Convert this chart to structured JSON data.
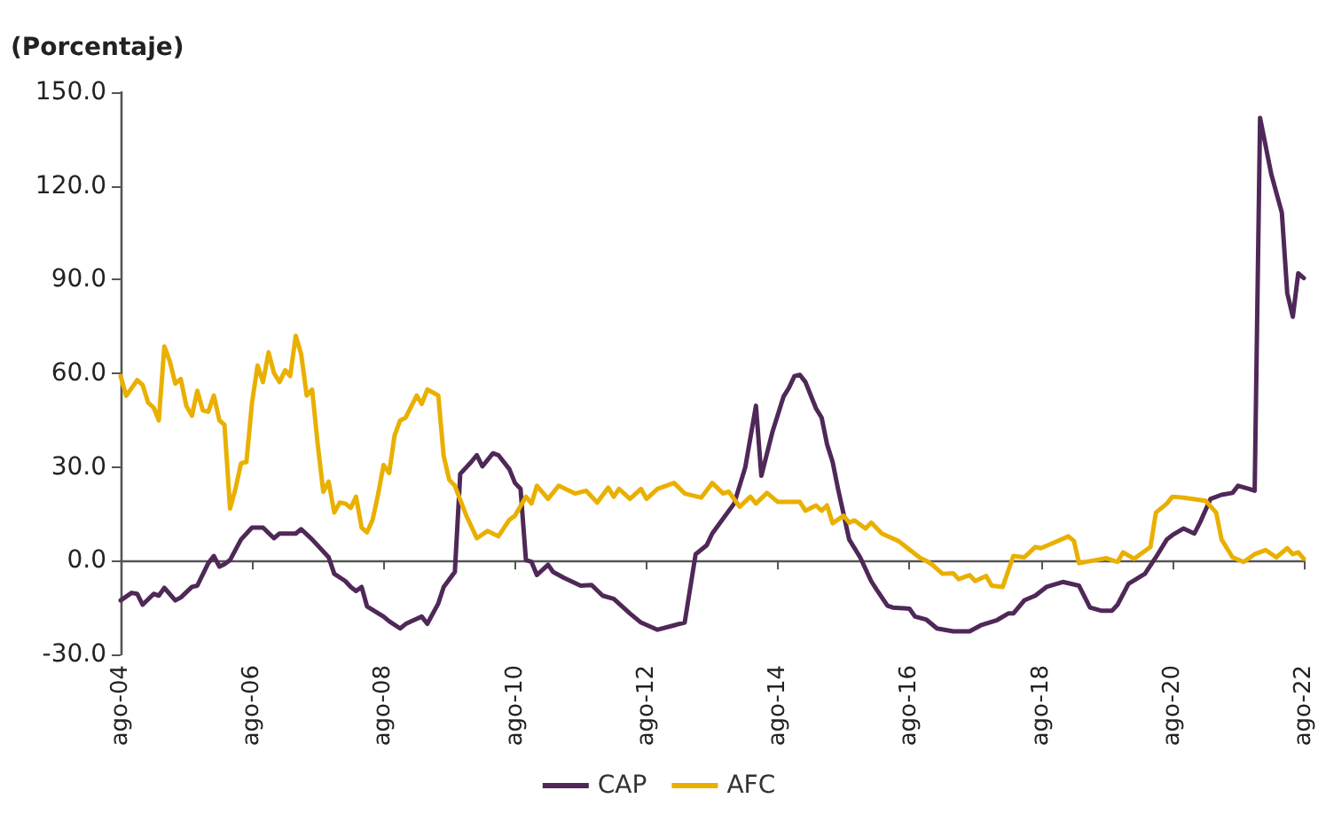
{
  "chart_data": {
    "type": "line",
    "ylabel": "(Porcentaje)",
    "ylim": [
      -30,
      150
    ],
    "yticks": [
      {
        "value": -30,
        "label": "-30.0"
      },
      {
        "value": 0,
        "label": "0.0"
      },
      {
        "value": 30,
        "label": "30.0"
      },
      {
        "value": 60,
        "label": "60.0"
      },
      {
        "value": 90,
        "label": "90.0"
      },
      {
        "value": 120,
        "label": "120.0"
      },
      {
        "value": 150,
        "label": "150.0"
      }
    ],
    "xlim": [
      "2004-08",
      "2022-08"
    ],
    "xticks": [
      {
        "value": "2004-08",
        "label": "ago-04"
      },
      {
        "value": "2006-08",
        "label": "ago-06"
      },
      {
        "value": "2008-08",
        "label": "ago-08"
      },
      {
        "value": "2010-08",
        "label": "ago-10"
      },
      {
        "value": "2012-08",
        "label": "ago-12"
      },
      {
        "value": "2014-08",
        "label": "ago-14"
      },
      {
        "value": "2016-08",
        "label": "ago-16"
      },
      {
        "value": "2018-08",
        "label": "ago-18"
      },
      {
        "value": "2020-08",
        "label": "ago-20"
      },
      {
        "value": "2022-08",
        "label": "ago-22"
      }
    ],
    "legend": "bottom",
    "marker": "none",
    "line_style": "solid",
    "series": [
      {
        "name": "CAP",
        "color": "#4f2858",
        "x": [
          "2004-08",
          "2004-10",
          "2004-11",
          "2004-12",
          "2005-02",
          "2005-03",
          "2005-04",
          "2005-06",
          "2005-07",
          "2005-09",
          "2005-10",
          "2005-12",
          "2006-01",
          "2006-02",
          "2006-03",
          "2006-04",
          "2006-06",
          "2006-08",
          "2006-10",
          "2006-12",
          "2007-01",
          "2007-04",
          "2007-05",
          "2007-07",
          "2007-10",
          "2007-11",
          "2008-01",
          "2008-02",
          "2008-03",
          "2008-04",
          "2008-05",
          "2008-08",
          "2008-09",
          "2008-11",
          "2008-12",
          "2009-01",
          "2009-03",
          "2009-04",
          "2009-06",
          "2009-07",
          "2009-09",
          "2009-10",
          "2009-12",
          "2010-01",
          "2010-02",
          "2010-04",
          "2010-05",
          "2010-07",
          "2010-08",
          "2010-09",
          "2010-10",
          "2010-11",
          "2010-12",
          "2011-02",
          "2011-03",
          "2011-05",
          "2011-08",
          "2011-10",
          "2011-12",
          "2012-02",
          "2012-05",
          "2012-07",
          "2012-10",
          "2013-01",
          "2013-03",
          "2013-05",
          "2013-07",
          "2013-08",
          "2013-10",
          "2013-12",
          "2014-02",
          "2014-04",
          "2014-05",
          "2014-07",
          "2014-09",
          "2014-10",
          "2014-11",
          "2014-12",
          "2015-01",
          "2015-03",
          "2015-04",
          "2015-05",
          "2015-06",
          "2015-07",
          "2015-09",
          "2015-11",
          "2016-01",
          "2016-02",
          "2016-04",
          "2016-05",
          "2016-08",
          "2016-09",
          "2016-11",
          "2017-01",
          "2017-04",
          "2017-07",
          "2017-09",
          "2017-12",
          "2018-02",
          "2018-03",
          "2018-05",
          "2018-07",
          "2018-09",
          "2018-12",
          "2019-03",
          "2019-05",
          "2019-07",
          "2019-09",
          "2019-10",
          "2019-12",
          "2020-03",
          "2020-05",
          "2020-07",
          "2020-08",
          "2020-10",
          "2020-12",
          "2021-01",
          "2021-03",
          "2021-05",
          "2021-07",
          "2021-08",
          "2021-10",
          "2021-11",
          "2021-12",
          "2022-02",
          "2022-04",
          "2022-05",
          "2022-06",
          "2022-07",
          "2022-08"
        ],
        "values": [
          -12.7,
          -10.3,
          -10.6,
          -14.1,
          -10.6,
          -11.2,
          -8.7,
          -12.7,
          -11.8,
          -8.4,
          -8,
          -0.8,
          1.5,
          -1.9,
          -1.1,
          0.2,
          6.8,
          10.6,
          10.6,
          7.2,
          8.7,
          8.7,
          10.1,
          6.8,
          1.1,
          -4.2,
          -6.5,
          -8.4,
          -9.7,
          -8.4,
          -14.6,
          -17.9,
          -19.4,
          -21.7,
          -20.3,
          -19.4,
          -17.9,
          -20.2,
          -13.7,
          -8.4,
          -3.6,
          27.8,
          31.6,
          33.8,
          30.2,
          34.4,
          33.8,
          29.3,
          24.9,
          23,
          0.2,
          -0.4,
          -4.6,
          -1.3,
          -3.6,
          -5.5,
          -8,
          -7.8,
          -11.2,
          -12.2,
          -16.9,
          -19.8,
          -22.1,
          -20.7,
          -19.8,
          2.1,
          4.9,
          8.7,
          13.5,
          18.3,
          30,
          49.6,
          27.2,
          41.1,
          52.5,
          55.3,
          59.1,
          59.5,
          57.2,
          48.7,
          45.8,
          37.3,
          31.6,
          23,
          6.8,
          1.1,
          -6.5,
          -9.3,
          -14.4,
          -15,
          -15.4,
          -17.9,
          -18.8,
          -21.7,
          -22.6,
          -22.6,
          -20.7,
          -19,
          -16.9,
          -16.9,
          -12.7,
          -11.2,
          -8.4,
          -6.8,
          -8,
          -15,
          -16,
          -16,
          -14.1,
          -7.4,
          -4.2,
          1.1,
          6.8,
          8.2,
          10.3,
          8.7,
          12.2,
          19.8,
          21.1,
          21.7,
          24,
          23,
          22.4,
          141.8,
          123.8,
          111.4,
          85.7,
          78.1,
          92,
          90.5
        ]
      },
      {
        "name": "AFC",
        "color": "#e9b000",
        "x": [
          "2004-08",
          "2004-09",
          "2004-11",
          "2004-12",
          "2005-01",
          "2005-02",
          "2005-03",
          "2005-04",
          "2005-05",
          "2005-06",
          "2005-07",
          "2005-08",
          "2005-09",
          "2005-10",
          "2005-11",
          "2005-12",
          "2006-01",
          "2006-02",
          "2006-03",
          "2006-04",
          "2006-05",
          "2006-06",
          "2006-07",
          "2006-08",
          "2006-09",
          "2006-10",
          "2006-11",
          "2006-12",
          "2007-01",
          "2007-02",
          "2007-03",
          "2007-04",
          "2007-05",
          "2007-06",
          "2007-07",
          "2007-08",
          "2007-09",
          "2007-10",
          "2007-11",
          "2007-12",
          "2008-01",
          "2008-02",
          "2008-03",
          "2008-04",
          "2008-05",
          "2008-06",
          "2008-07",
          "2008-08",
          "2008-09",
          "2008-10",
          "2008-11",
          "2008-12",
          "2009-02",
          "2009-03",
          "2009-04",
          "2009-06",
          "2009-07",
          "2009-08",
          "2009-09",
          "2009-11",
          "2010-01",
          "2010-03",
          "2010-05",
          "2010-07",
          "2010-08",
          "2010-10",
          "2010-11",
          "2010-12",
          "2011-02",
          "2011-04",
          "2011-07",
          "2011-09",
          "2011-11",
          "2012-01",
          "2012-02",
          "2012-03",
          "2012-05",
          "2012-07",
          "2012-08",
          "2012-10",
          "2013-01",
          "2013-03",
          "2013-06",
          "2013-08",
          "2013-10",
          "2013-11",
          "2014-01",
          "2014-03",
          "2014-04",
          "2014-06",
          "2014-08",
          "2014-12",
          "2015-01",
          "2015-03",
          "2015-04",
          "2015-05",
          "2015-06",
          "2015-08",
          "2015-09",
          "2015-10",
          "2015-12",
          "2016-01",
          "2016-03",
          "2016-06",
          "2016-10",
          "2016-11",
          "2016-12",
          "2017-02",
          "2017-04",
          "2017-05",
          "2017-07",
          "2017-08",
          "2017-10",
          "2017-11",
          "2018-01",
          "2018-03",
          "2018-05",
          "2018-07",
          "2018-08",
          "2018-10",
          "2019-01",
          "2019-02",
          "2019-03",
          "2019-06",
          "2019-08",
          "2019-10",
          "2019-11",
          "2020-01",
          "2020-04",
          "2020-05",
          "2020-07",
          "2020-08",
          "2020-10",
          "2021-02",
          "2021-04",
          "2021-05",
          "2021-07",
          "2021-09",
          "2021-11",
          "2022-01",
          "2022-03",
          "2022-05",
          "2022-06",
          "2022-07",
          "2022-08"
        ],
        "values": [
          59.1,
          52.8,
          57.8,
          56.3,
          50.6,
          49,
          44.9,
          68.6,
          63.9,
          56.7,
          58.2,
          49.6,
          46.4,
          54.4,
          48.1,
          47.7,
          52.9,
          44.9,
          43.5,
          16.7,
          23,
          31.2,
          31.6,
          50.6,
          62.5,
          57.2,
          66.7,
          60.1,
          57.2,
          61,
          59.1,
          72,
          66.2,
          52.9,
          54.8,
          37.3,
          22.1,
          25.3,
          15.4,
          18.6,
          18.3,
          16.9,
          20.5,
          10.6,
          9.1,
          13.1,
          21.1,
          30.6,
          28.1,
          40.1,
          44.9,
          45.8,
          52.9,
          50.2,
          54.8,
          52.9,
          33.5,
          25.9,
          24,
          14.8,
          7.2,
          9.5,
          7.8,
          13.1,
          14.4,
          20.5,
          18.3,
          24,
          19.8,
          24,
          21.5,
          22.4,
          18.6,
          23.4,
          20.5,
          23,
          19.8,
          23,
          19.8,
          23,
          24.9,
          21.5,
          20.2,
          24.9,
          21.5,
          22.1,
          17.3,
          20.5,
          18.3,
          21.7,
          18.8,
          18.8,
          16,
          17.7,
          16,
          17.7,
          12,
          14.4,
          12.2,
          12.9,
          10.3,
          12.2,
          8.7,
          6.3,
          0.8,
          0,
          -1.1,
          -4.2,
          -4,
          -5.9,
          -4.6,
          -6.5,
          -4.9,
          -8,
          -8.4,
          1.5,
          1.1,
          4.4,
          4,
          5.5,
          7.8,
          6.3,
          -0.8,
          0.2,
          0.8,
          -0.4,
          2.7,
          0.6,
          4.4,
          15.4,
          18.3,
          20.5,
          20.2,
          19.2,
          15.4,
          6.8,
          1.1,
          -0.4,
          2.1,
          3.4,
          1.1,
          4,
          2.1,
          2.7,
          0.6
        ]
      }
    ]
  }
}
